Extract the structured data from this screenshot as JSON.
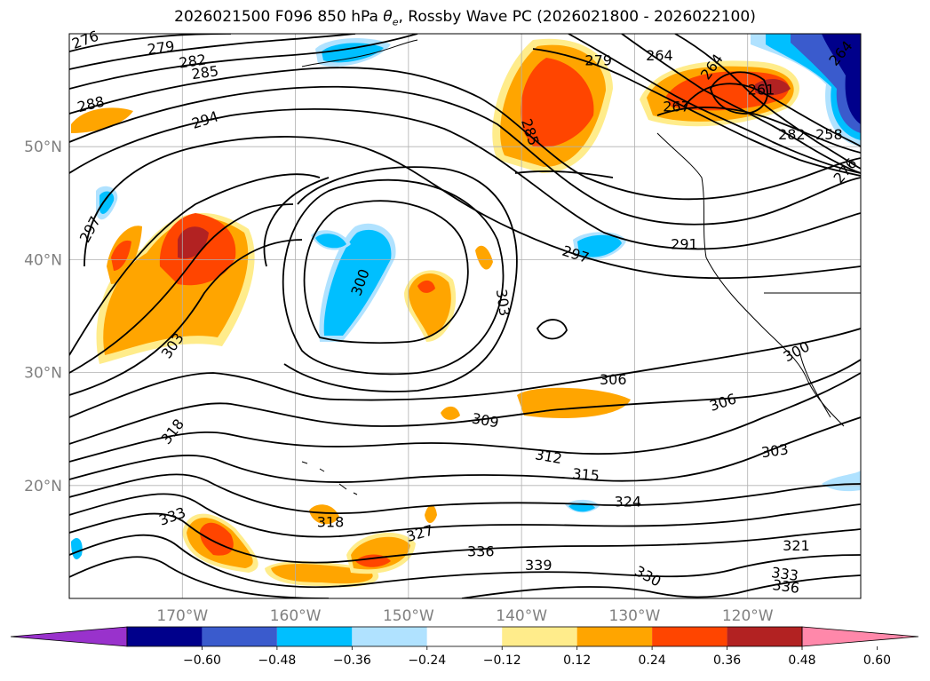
{
  "chart_data": {
    "type": "contour-map",
    "title": "2026021500 F096 850 hPa θe, Rossby Wave PC (2026021800 - 2026022100)",
    "title_parts": {
      "prefix": "2026021500 F096 850 hPa ",
      "theta": "θ",
      "sub": "e",
      "suffix": ", Rossby Wave PC (2026021800 - 2026022100)"
    },
    "lon_range": [
      -180,
      -110
    ],
    "lat_range": [
      10,
      60
    ],
    "x_ticks": [
      {
        "lon": -170,
        "label": "170°W"
      },
      {
        "lon": -160,
        "label": "160°W"
      },
      {
        "lon": -150,
        "label": "150°W"
      },
      {
        "lon": -140,
        "label": "140°W"
      },
      {
        "lon": -130,
        "label": "130°W"
      },
      {
        "lon": -120,
        "label": "120°W"
      }
    ],
    "y_ticks": [
      {
        "lat": 50,
        "label": "50°N"
      },
      {
        "lat": 40,
        "label": "40°N"
      },
      {
        "lat": 30,
        "label": "30°N"
      },
      {
        "lat": 20,
        "label": "20°N"
      }
    ],
    "contour_labels": [
      {
        "text": "276",
        "lon": -178.6,
        "lat": 59.5,
        "rot": -20
      },
      {
        "text": "279",
        "lon": -171.9,
        "lat": 58.8,
        "rot": -8
      },
      {
        "text": "282",
        "lon": -169.1,
        "lat": 57.6,
        "rot": -8
      },
      {
        "text": "285",
        "lon": -168.0,
        "lat": 56.6,
        "rot": -8
      },
      {
        "text": "288",
        "lon": -178.1,
        "lat": 53.8,
        "rot": -14
      },
      {
        "text": "294",
        "lon": -168.0,
        "lat": 52.4,
        "rot": -18
      },
      {
        "text": "297",
        "lon": -178.2,
        "lat": 42.7,
        "rot": -62
      },
      {
        "text": "303",
        "lon": -170.9,
        "lat": 32.4,
        "rot": -55
      },
      {
        "text": "318",
        "lon": -170.9,
        "lat": 24.8,
        "rot": -52
      },
      {
        "text": "333",
        "lon": -170.9,
        "lat": 17.3,
        "rot": -20
      },
      {
        "text": "318",
        "lon": -156.9,
        "lat": 16.8,
        "rot": 0
      },
      {
        "text": "327",
        "lon": -149.0,
        "lat": 15.8,
        "rot": -16
      },
      {
        "text": "336",
        "lon": -143.6,
        "lat": 14.2,
        "rot": 0
      },
      {
        "text": "339",
        "lon": -138.5,
        "lat": 13.0,
        "rot": 0
      },
      {
        "text": "330",
        "lon": -128.8,
        "lat": 12.0,
        "rot": 28
      },
      {
        "text": "321",
        "lon": -115.7,
        "lat": 14.7,
        "rot": 0
      },
      {
        "text": "333",
        "lon": -116.7,
        "lat": 12.2,
        "rot": 8
      },
      {
        "text": "336",
        "lon": -116.6,
        "lat": 11.1,
        "rot": 8
      },
      {
        "text": "300",
        "lon": -154.3,
        "lat": 38.0,
        "rot": -70
      },
      {
        "text": "303",
        "lon": -141.6,
        "lat": 36.2,
        "rot": 82
      },
      {
        "text": "297",
        "lon": -135.2,
        "lat": 40.5,
        "rot": 18
      },
      {
        "text": "291",
        "lon": -125.6,
        "lat": 41.4,
        "rot": 0
      },
      {
        "text": "306",
        "lon": -131.9,
        "lat": 29.4,
        "rot": 0
      },
      {
        "text": "306",
        "lon": -122.2,
        "lat": 27.4,
        "rot": -18
      },
      {
        "text": "309",
        "lon": -143.2,
        "lat": 25.8,
        "rot": 10
      },
      {
        "text": "312",
        "lon": -137.6,
        "lat": 22.6,
        "rot": 10
      },
      {
        "text": "315",
        "lon": -134.3,
        "lat": 21.0,
        "rot": 5
      },
      {
        "text": "324",
        "lon": -130.6,
        "lat": 18.6,
        "rot": 0
      },
      {
        "text": "303",
        "lon": -117.6,
        "lat": 23.1,
        "rot": -8
      },
      {
        "text": "300",
        "lon": -115.7,
        "lat": 31.9,
        "rot": -28
      },
      {
        "text": "285",
        "lon": -139.2,
        "lat": 51.3,
        "rot": 72
      },
      {
        "text": "279",
        "lon": -133.2,
        "lat": 57.7,
        "rot": 0
      },
      {
        "text": "264",
        "lon": -127.8,
        "lat": 58.1,
        "rot": 0
      },
      {
        "text": "264",
        "lon": -123.2,
        "lat": 57.1,
        "rot": -55
      },
      {
        "text": "267",
        "lon": -126.3,
        "lat": 53.6,
        "rot": 0
      },
      {
        "text": "261",
        "lon": -118.8,
        "lat": 55.1,
        "rot": 0
      },
      {
        "text": "282",
        "lon": -116.1,
        "lat": 51.1,
        "rot": 0
      },
      {
        "text": "258",
        "lon": -112.8,
        "lat": 51.1,
        "rot": 0
      },
      {
        "text": "264",
        "lon": -111.8,
        "lat": 58.3,
        "rot": -50
      },
      {
        "text": "276",
        "lon": -111.4,
        "lat": 47.9,
        "rot": -50
      }
    ],
    "colorbar": {
      "ticks": [
        "−0.60",
        "−0.48",
        "−0.36",
        "−0.24",
        "−0.12",
        "0.12",
        "0.24",
        "0.36",
        "0.48",
        "0.60"
      ],
      "colors": [
        "#9932cc",
        "#00008b",
        "#3a5bcd",
        "#00bfff",
        "#b0e2ff",
        "#ffffff",
        "#ffec8b",
        "#ffa500",
        "#ff4500",
        "#b22222",
        "#ff88aa"
      ]
    },
    "colors": {
      "pos_light": "#ffec8b",
      "pos_orange": "#ffa500",
      "pos_red": "#ff4500",
      "pos_dark": "#b22222",
      "neg_light": "#b0e2ff",
      "neg_blue": "#00bfff",
      "neg_mid": "#3a5bcd",
      "neg_dark": "#00008b",
      "grid": "#b0b0b0",
      "contour": "#000000",
      "tick_text": "#808080"
    }
  }
}
